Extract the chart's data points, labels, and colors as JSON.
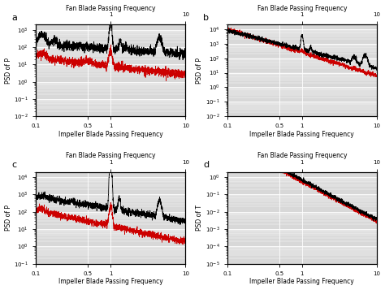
{
  "title_top": "Fan Blade Passing Frequency",
  "xlabel": "Impeller Blade Passing Frequency",
  "panels": [
    {
      "label": "a",
      "ylabel": "PSD of P",
      "ylim": [
        0.01,
        2000.0
      ],
      "black_base": 300,
      "black_slope": -0.5,
      "red_base": 5,
      "red_slope": -0.3
    },
    {
      "label": "b",
      "ylabel": "PSD of P",
      "ylim": [
        0.01,
        20000.0
      ],
      "black_base": 400,
      "black_slope": -1.2,
      "red_base": 200,
      "red_slope": -1.5
    },
    {
      "label": "c",
      "ylabel": "PSD of P",
      "ylim": [
        0.1,
        20000.0
      ],
      "black_base": 200,
      "black_slope": -0.8,
      "red_base": 20,
      "red_slope": -0.8
    },
    {
      "label": "d",
      "ylabel": "PSD of T",
      "ylim": [
        1e-05,
        2.0
      ],
      "black_base": 0.8,
      "black_slope": -2.2,
      "red_base": 0.5,
      "red_slope": -2.2
    }
  ],
  "xlim": [
    0.1,
    10
  ],
  "black_color": "#000000",
  "red_color": "#cc0000",
  "bg_color": "#d8d8d8",
  "grid_color": "#ffffff",
  "seed": 42
}
